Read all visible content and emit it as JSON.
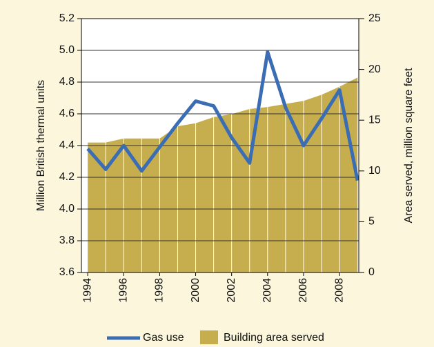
{
  "chart_data": {
    "type": "line-area",
    "x": [
      1994,
      1995,
      1996,
      1997,
      1998,
      1999,
      2000,
      2001,
      2002,
      2003,
      2004,
      2005,
      2006,
      2007,
      2008,
      2009
    ],
    "series": [
      {
        "name": "Gas use",
        "color": "#3b6db4",
        "values": [
          4.38,
          4.25,
          4.4,
          4.24,
          4.39,
          4.54,
          4.68,
          4.65,
          4.45,
          4.29,
          4.99,
          4.64,
          4.4,
          4.57,
          4.75,
          4.18
        ]
      },
      {
        "name": "Building area served",
        "color": "#c6ad4e",
        "axis": "y2",
        "values": [
          12.8,
          12.8,
          13.2,
          13.2,
          13.2,
          14.4,
          14.7,
          15.3,
          15.6,
          16.1,
          16.3,
          16.6,
          16.9,
          17.5,
          18.3,
          19.2
        ]
      }
    ],
    "ylabel": "Million British thermal units",
    "y2label": "Area served, million square feet",
    "xlim": [
      1993.65,
      2009.07
    ],
    "xticks": [
      1994,
      1996,
      1998,
      2000,
      2002,
      2004,
      2006,
      2008
    ],
    "ylim": [
      3.6,
      5.2
    ],
    "yticks": [
      3.6,
      3.8,
      {
        "value": 4,
        "label": "4.0"
      },
      4.2,
      4.4,
      4.6,
      4.8,
      {
        "value": 5,
        "label": "5.0"
      },
      5.2
    ],
    "y2lim": [
      0,
      25
    ],
    "y2ticks": [
      0,
      5,
      10,
      15,
      20,
      25
    ],
    "grid": true,
    "legend": "bottom"
  }
}
